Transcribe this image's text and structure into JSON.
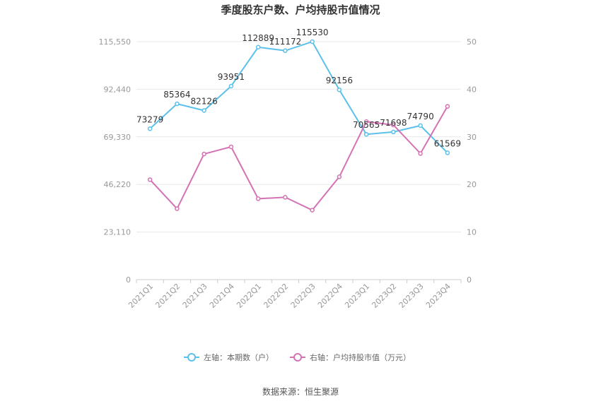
{
  "chart_data": {
    "type": "line",
    "title": "季度股东户数、户均持股市值情况",
    "categories": [
      "2021Q1",
      "2021Q2",
      "2021Q3",
      "2021Q4",
      "2022Q1",
      "2022Q2",
      "2022Q3",
      "2022Q4",
      "2023Q1",
      "2023Q2",
      "2023Q3",
      "2023Q4"
    ],
    "left_axis": {
      "ticks": [
        "0",
        "23,110",
        "46,220",
        "69,330",
        "92,440",
        "115,550"
      ],
      "min": 0,
      "max": 115550
    },
    "right_axis": {
      "ticks": [
        "0",
        "10",
        "20",
        "30",
        "40",
        "50"
      ],
      "min": 0,
      "max": 50
    },
    "series": [
      {
        "name": "左轴：本期数（户）",
        "axis": "left",
        "color": "#5bc0eb",
        "values": [
          73279,
          85364,
          82126,
          93951,
          112889,
          111172,
          115530,
          92156,
          70565,
          71698,
          74790,
          61569
        ],
        "labels": [
          "73279",
          "85364",
          "82126",
          "93951",
          "112889",
          "111172",
          "115530",
          "92156",
          "70565",
          "71698",
          "74790",
          "61569"
        ]
      },
      {
        "name": "右轴：户均持股市值（万元）",
        "axis": "right",
        "color": "#d472b4",
        "values": [
          21.0,
          14.9,
          26.4,
          27.9,
          17.0,
          17.3,
          14.6,
          21.6,
          33.2,
          32.5,
          26.5,
          36.4
        ]
      }
    ],
    "grid": true,
    "legend_position": "bottom"
  },
  "source_text": "数据来源：恒生聚源"
}
